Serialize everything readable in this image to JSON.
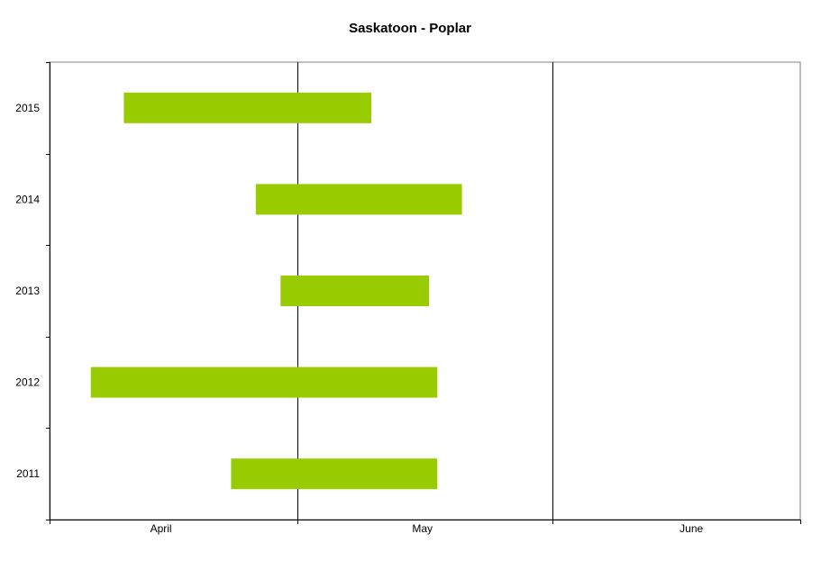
{
  "chart_data": {
    "type": "bar",
    "orientation": "horizontal",
    "title": "Saskatoon - Poplar",
    "xlabel": "",
    "ylabel": "",
    "categories": [
      "2015",
      "2014",
      "2013",
      "2012",
      "2011"
    ],
    "series": [
      {
        "values": [
          {
            "category": "2015",
            "start": "04-10",
            "end": "05-10"
          },
          {
            "category": "2014",
            "start": "04-26",
            "end": "05-21"
          },
          {
            "category": "2013",
            "start": "04-29",
            "end": "05-17"
          },
          {
            "category": "2012",
            "start": "04-06",
            "end": "05-18"
          },
          {
            "category": "2011",
            "start": "04-23",
            "end": "05-18"
          }
        ]
      }
    ],
    "x_axis": {
      "type": "date",
      "range": [
        "04-01",
        "06-30"
      ],
      "month_labels": [
        "April",
        "May",
        "June"
      ],
      "gridlines": [
        "05-01",
        "06-01"
      ]
    },
    "grid": "vertical month boundaries",
    "legend": "none",
    "bar_color": "#99cc00",
    "axis_color": "#000000"
  }
}
